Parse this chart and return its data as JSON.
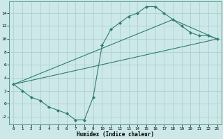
{
  "title": "",
  "xlabel": "Humidex (Indice chaleur)",
  "xlim": [
    -0.5,
    23.5
  ],
  "ylim": [
    -3.2,
    15.8
  ],
  "xticks": [
    0,
    1,
    2,
    3,
    4,
    5,
    6,
    7,
    8,
    9,
    10,
    11,
    12,
    13,
    14,
    15,
    16,
    17,
    18,
    19,
    20,
    21,
    22,
    23
  ],
  "yticks": [
    -2,
    0,
    2,
    4,
    6,
    8,
    10,
    12,
    14
  ],
  "bg_color": "#cce8e8",
  "grid_color": "#aacccc",
  "line_color": "#2e7d72",
  "line1_x": [
    0,
    1,
    2,
    3,
    4,
    5,
    6,
    7,
    8,
    9,
    10,
    11,
    12,
    13,
    14,
    15,
    16,
    17,
    18,
    19,
    20,
    21,
    22,
    23
  ],
  "line1_y": [
    3,
    2,
    1,
    0.5,
    -0.5,
    -1,
    -1.5,
    -2.5,
    -2.5,
    1,
    9,
    11.5,
    12.5,
    13.5,
    14,
    15,
    15,
    14,
    13,
    12,
    11,
    10.5,
    10.5,
    10
  ],
  "line2_x": [
    0,
    23
  ],
  "line2_y": [
    3,
    10
  ],
  "line3_x": [
    0,
    18,
    23
  ],
  "line3_y": [
    3,
    13,
    10
  ]
}
